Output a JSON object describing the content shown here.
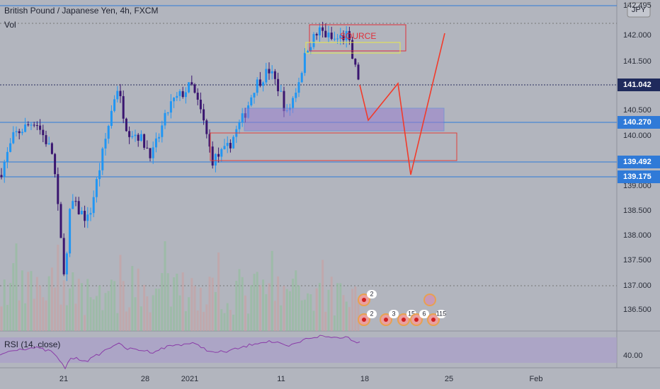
{
  "header": {
    "title": "British Pound / Japanese Yen, 4h, FXCM",
    "volume": "Vol",
    "currency": "JPY"
  },
  "price_axis": [
    "142.495",
    "142.000",
    "141.500",
    "140.500",
    "140.000",
    "139.000",
    "138.500",
    "138.000",
    "137.500",
    "137.000",
    "136.500"
  ],
  "price_markers": {
    "last": "141.042",
    "levels": [
      "140.270",
      "139.492",
      "139.175"
    ]
  },
  "annotation": "SOURCE",
  "events": [
    "2",
    "2",
    "3",
    "15",
    "6",
    "115"
  ],
  "rsi": {
    "label": "RSI (14, close)",
    "level": "40.00"
  },
  "time_axis": [
    "21",
    "28",
    "2021",
    "11",
    "18",
    "25",
    "Feb"
  ]
}
